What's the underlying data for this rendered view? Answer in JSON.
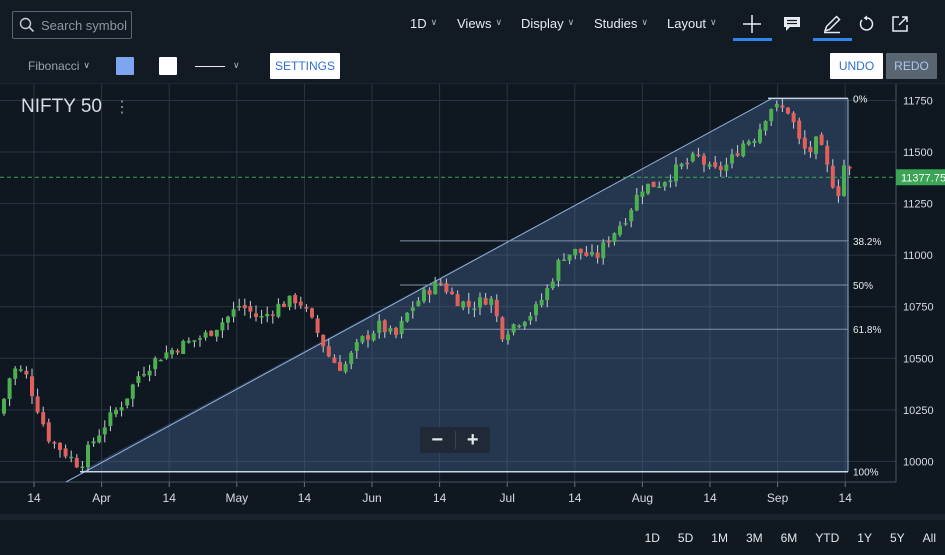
{
  "search": {
    "placeholder": "Search symbol"
  },
  "top_menu": {
    "interval": "1D",
    "views": "Views",
    "display": "Display",
    "studies": "Studies",
    "layout": "Layout"
  },
  "icons": [
    "search-icon",
    "crosshair-icon",
    "comment-icon",
    "pencil-icon",
    "undo-arrow-icon",
    "popout-icon",
    "chevron-down-icon"
  ],
  "drawing_toolbar": {
    "tool": "Fibonacci",
    "fill_color": "#7ea6f0",
    "line_color": "#ffffff",
    "settings_label": "SETTINGS",
    "undo_label": "UNDO",
    "redo_label": "REDO"
  },
  "chart": {
    "symbol": "NIFTY 50",
    "last_price_label": "11377.75",
    "colors": {
      "up": "#4caf50",
      "down": "#e0605c",
      "background": "#0f1720",
      "fib_fill": "#4a6d9c",
      "price_tag": "#3aa655"
    }
  },
  "chart_data": {
    "type": "candlestick",
    "symbol": "NIFTY 50",
    "interval": "1D",
    "ylim": [
      9900,
      11830
    ],
    "y_ticks": [
      10000,
      10250,
      10500,
      10750,
      11000,
      11250,
      11500,
      11750
    ],
    "x_ticks": [
      "14",
      "Apr",
      "14",
      "May",
      "14",
      "Jun",
      "14",
      "Jul",
      "14",
      "Aug",
      "14",
      "Sep",
      "14"
    ],
    "last_price": 11377.75,
    "grid": true,
    "fibonacci_retracement": {
      "high": 11760,
      "low": 9950,
      "levels": [
        {
          "label": "0%",
          "value": 11760
        },
        {
          "label": "38.2%",
          "value": 11069
        },
        {
          "label": "50%",
          "value": 10855
        },
        {
          "label": "61.8%",
          "value": 10641
        },
        {
          "label": "100%",
          "value": 9950
        }
      ]
    }
  },
  "zoom": {
    "minus": "−",
    "plus": "+"
  },
  "ranges": [
    "1D",
    "5D",
    "1M",
    "3M",
    "6M",
    "YTD",
    "1Y",
    "5Y",
    "All"
  ]
}
